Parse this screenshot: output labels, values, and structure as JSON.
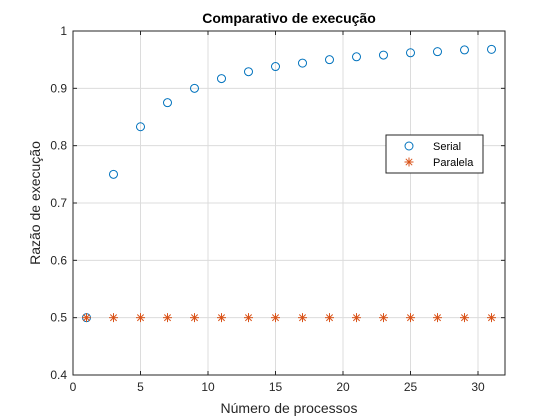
{
  "chart_data": {
    "type": "scatter",
    "title": "Comparativo de execução",
    "xlabel": "Número de processos",
    "ylabel": "Razão de execução",
    "xlim": [
      0,
      32
    ],
    "ylim": [
      0.4,
      1
    ],
    "xticks": [
      0,
      5,
      10,
      15,
      20,
      25,
      30
    ],
    "yticks": [
      0.4,
      0.5,
      0.6,
      0.7,
      0.8,
      0.9,
      1
    ],
    "xtick_labels": [
      "0",
      "5",
      "10",
      "15",
      "20",
      "25",
      "30"
    ],
    "ytick_labels": [
      "0.4",
      "0.5",
      "0.6",
      "0.7",
      "0.8",
      "0.9",
      "1"
    ],
    "grid": true,
    "legend_position": "right",
    "x": [
      1,
      3,
      5,
      7,
      9,
      11,
      13,
      15,
      17,
      19,
      21,
      23,
      25,
      27,
      29,
      31
    ],
    "series": [
      {
        "name": "Serial",
        "marker": "circle",
        "color": "#0072BD",
        "values": [
          0.5,
          0.75,
          0.833,
          0.875,
          0.9,
          0.917,
          0.929,
          0.938,
          0.944,
          0.95,
          0.955,
          0.958,
          0.962,
          0.964,
          0.967,
          0.968
        ]
      },
      {
        "name": "Paralela",
        "marker": "asterisk",
        "color": "#D95319",
        "values": [
          0.5,
          0.5,
          0.5,
          0.5,
          0.5,
          0.5,
          0.5,
          0.5,
          0.5,
          0.5,
          0.5,
          0.5,
          0.5,
          0.5,
          0.5,
          0.5
        ]
      }
    ]
  }
}
